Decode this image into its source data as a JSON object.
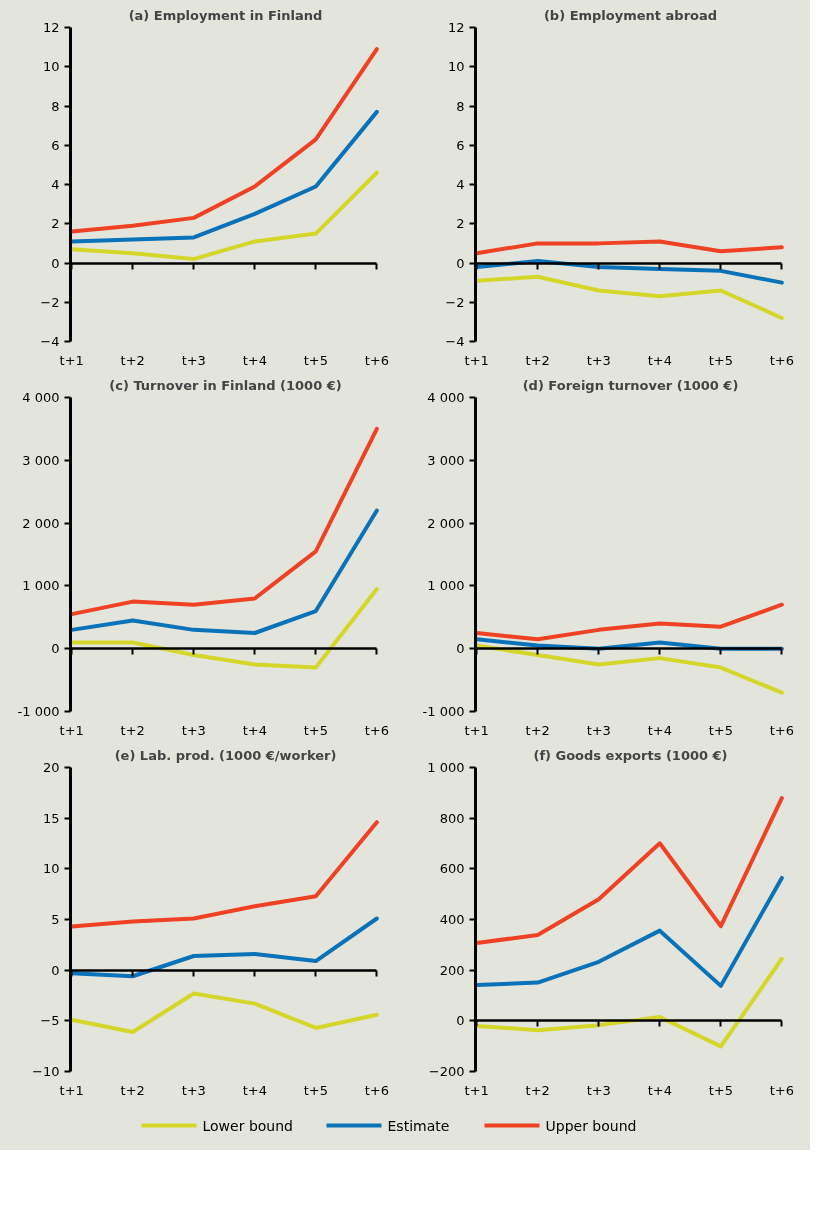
{
  "chart_data": [
    {
      "type": "line",
      "title": "(a) Employment in Finland",
      "categories": [
        "t+1",
        "t+2",
        "t+3",
        "t+4",
        "t+5",
        "t+6"
      ],
      "ylim": [
        -4,
        12
      ],
      "yticks": [
        -4,
        -2,
        0,
        2,
        4,
        6,
        8,
        10,
        12
      ],
      "marker": "none",
      "series": [
        {
          "color": "#d4d62a",
          "values": [
            0.7,
            0.5,
            0.2,
            1.1,
            1.5,
            4.6
          ]
        },
        {
          "color": "#0a72b8",
          "values": [
            1.1,
            1.2,
            1.3,
            2.5,
            3.9,
            7.7
          ]
        },
        {
          "color": "#ef4123",
          "values": [
            1.6,
            1.9,
            2.3,
            3.9,
            6.3,
            10.9
          ]
        }
      ]
    },
    {
      "type": "line",
      "title": "(b) Employment abroad",
      "categories": [
        "t+1",
        "t+2",
        "t+3",
        "t+4",
        "t+5",
        "t+6"
      ],
      "ylim": [
        -4,
        12
      ],
      "yticks": [
        -4,
        -2,
        0,
        2,
        4,
        6,
        8,
        10,
        12
      ],
      "marker": "none",
      "series": [
        {
          "color": "#d4d62a",
          "values": [
            -0.9,
            -0.7,
            -1.4,
            -1.7,
            -1.4,
            -2.8
          ]
        },
        {
          "color": "#0a72b8",
          "values": [
            -0.2,
            0.1,
            -0.2,
            -0.3,
            -0.4,
            -1.0
          ]
        },
        {
          "color": "#ef4123",
          "values": [
            0.5,
            1.0,
            1.0,
            1.1,
            0.6,
            0.8
          ]
        }
      ]
    },
    {
      "type": "line",
      "title": "(c) Turnover in Finland (1000 €)",
      "categories": [
        "t+1",
        "t+2",
        "t+3",
        "t+4",
        "t+5",
        "t+6"
      ],
      "ylim": [
        -1000,
        4000
      ],
      "yticks": [
        {
          "value": -1000,
          "label": "-1 000"
        },
        0,
        {
          "value": 1000,
          "label": "1 000"
        },
        {
          "value": 2000,
          "label": "2 000"
        },
        {
          "value": 3000,
          "label": "3 000"
        },
        {
          "value": 4000,
          "label": "4 000"
        }
      ],
      "marker": "none",
      "series": [
        {
          "color": "#d4d62a",
          "values": [
            100,
            100,
            -100,
            -250,
            -300,
            950
          ]
        },
        {
          "color": "#0a72b8",
          "values": [
            300,
            450,
            300,
            250,
            600,
            2200
          ]
        },
        {
          "color": "#ef4123",
          "values": [
            550,
            750,
            700,
            800,
            1550,
            3500
          ]
        }
      ]
    },
    {
      "type": "line",
      "title": "(d) Foreign turnover (1000 €)",
      "categories": [
        "t+1",
        "t+2",
        "t+3",
        "t+4",
        "t+5",
        "t+6"
      ],
      "ylim": [
        -1000,
        4000
      ],
      "yticks": [
        {
          "value": -1000,
          "label": "-1 000"
        },
        0,
        {
          "value": 1000,
          "label": "1 000"
        },
        {
          "value": 2000,
          "label": "2 000"
        },
        {
          "value": 3000,
          "label": "3 000"
        },
        {
          "value": 4000,
          "label": "4 000"
        }
      ],
      "marker": "none",
      "series": [
        {
          "color": "#d4d62a",
          "values": [
            50,
            -100,
            -250,
            -150,
            -300,
            -700
          ]
        },
        {
          "color": "#0a72b8",
          "values": [
            150,
            50,
            0,
            100,
            0,
            0
          ]
        },
        {
          "color": "#ef4123",
          "values": [
            250,
            150,
            300,
            400,
            350,
            700
          ]
        }
      ]
    },
    {
      "type": "line",
      "title": "(e) Lab. prod. (1000 €/worker)",
      "categories": [
        "t+1",
        "t+2",
        "t+3",
        "t+4",
        "t+5",
        "t+6"
      ],
      "ylim": [
        -10,
        20
      ],
      "yticks": [
        -10,
        -5,
        0,
        5,
        10,
        15,
        20
      ],
      "marker": "none",
      "series": [
        {
          "color": "#d4d62a",
          "values": [
            -4.9,
            -6.1,
            -2.3,
            -3.3,
            -5.7,
            -4.4
          ]
        },
        {
          "color": "#0a72b8",
          "values": [
            -0.3,
            -0.6,
            1.4,
            1.6,
            0.9,
            5.1
          ]
        },
        {
          "color": "#ef4123",
          "values": [
            4.3,
            4.8,
            5.1,
            6.3,
            7.3,
            14.6
          ]
        }
      ]
    },
    {
      "type": "line",
      "title": "(f) Goods exports (1000 €)",
      "categories": [
        "t+1",
        "t+2",
        "t+3",
        "t+4",
        "t+5",
        "t+6"
      ],
      "ylim": [
        -200,
        1000
      ],
      "yticks": [
        -200,
        0,
        200,
        400,
        600,
        800,
        {
          "value": 1000,
          "label": "1 000"
        }
      ],
      "marker": "none",
      "legend": "bottom",
      "series": [
        {
          "name": "Lower bound",
          "color": "#d4d62a",
          "values": [
            -20,
            -37,
            -17,
            15,
            -101,
            245
          ]
        },
        {
          "name": "Estimate",
          "color": "#0a72b8",
          "values": [
            141,
            151,
            233,
            356,
            138,
            564
          ]
        },
        {
          "name": "Upper bound",
          "color": "#ef4123",
          "values": [
            307,
            339,
            480,
            701,
            374,
            879
          ]
        }
      ]
    }
  ]
}
